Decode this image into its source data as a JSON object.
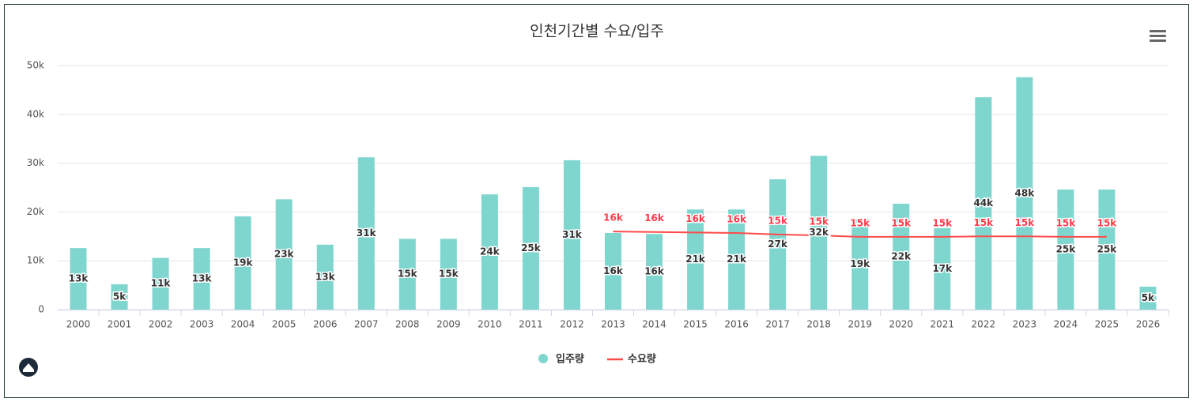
{
  "chart_data": {
    "type": "bar",
    "title": "인천기간별 수요/입주",
    "categories": [
      "2000",
      "2001",
      "2002",
      "2003",
      "2004",
      "2005",
      "2006",
      "2007",
      "2008",
      "2009",
      "2010",
      "2011",
      "2012",
      "2013",
      "2014",
      "2015",
      "2016",
      "2017",
      "2018",
      "2019",
      "2020",
      "2021",
      "2022",
      "2023",
      "2024",
      "2025",
      "2026"
    ],
    "series": [
      {
        "name": "입주량",
        "type": "bar",
        "color": "#7fd6cf",
        "values": [
          12600,
          5200,
          10600,
          12600,
          19100,
          22600,
          13300,
          31200,
          14500,
          14500,
          23600,
          25100,
          30600,
          15700,
          15500,
          20500,
          20500,
          26700,
          31500,
          18600,
          21700,
          16700,
          43500,
          47600,
          24600,
          24600,
          4700
        ],
        "value_labels": [
          "13k",
          "5k",
          "11k",
          "13k",
          "19k",
          "23k",
          "13k",
          "31k",
          "15k",
          "15k",
          "24k",
          "25k",
          "31k",
          "16k",
          "16k",
          "21k",
          "21k",
          "27k",
          "32k",
          "19k",
          "22k",
          "17k",
          "44k",
          "48k",
          "25k",
          "25k",
          "5k"
        ]
      },
      {
        "name": "수요량",
        "type": "line",
        "color": "#ff4a4a",
        "values": [
          null,
          null,
          null,
          null,
          null,
          null,
          null,
          null,
          null,
          null,
          null,
          null,
          null,
          16000,
          15900,
          15800,
          15700,
          15400,
          15200,
          14900,
          14900,
          14900,
          15000,
          15000,
          14900,
          14900,
          null
        ],
        "value_labels": [
          null,
          null,
          null,
          null,
          null,
          null,
          null,
          null,
          null,
          null,
          null,
          null,
          null,
          "16k",
          "16k",
          "16k",
          "16k",
          "15k",
          "15k",
          "15k",
          "15k",
          "15k",
          "15k",
          "15k",
          "15k",
          "15k",
          null
        ]
      }
    ],
    "ylim": [
      0,
      50000
    ],
    "yticks": [
      0,
      {
        "value": 10000,
        "label": "10k"
      },
      {
        "value": 20000,
        "label": "20k"
      },
      {
        "value": 30000,
        "label": "30k"
      },
      {
        "value": 40000,
        "label": "40k"
      },
      {
        "value": 50000,
        "label": "50k"
      }
    ],
    "grid": true,
    "legend": "bottom"
  }
}
